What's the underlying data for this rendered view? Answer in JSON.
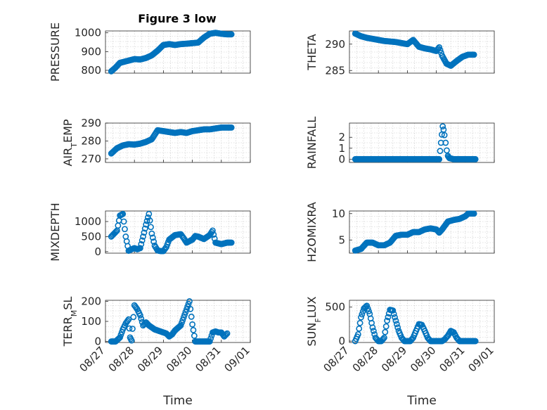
{
  "figure": {
    "title": "Figure 3 low",
    "marker_color": "#0072BD",
    "background": "#ffffff"
  },
  "chart_data": [
    {
      "type": "scatter",
      "title": "Figure 3 low",
      "xlabel": "",
      "ylabel": "PRESSURE",
      "x_tick_labels": [],
      "ylim": [
        785,
        1010
      ],
      "yticks": [
        800,
        900,
        1000
      ],
      "grid": true,
      "series": [
        {
          "points": [
            [
              0.2,
              795
            ],
            [
              0.35,
              815
            ],
            [
              0.5,
              840
            ],
            [
              0.7,
              848
            ],
            [
              0.9,
              856
            ],
            [
              1.0,
              860
            ],
            [
              1.2,
              858
            ],
            [
              1.4,
              866
            ],
            [
              1.6,
              880
            ],
            [
              1.8,
              905
            ],
            [
              2.0,
              935
            ],
            [
              2.2,
              940
            ],
            [
              2.4,
              935
            ],
            [
              2.6,
              940
            ],
            [
              2.8,
              942
            ],
            [
              3.0,
              945
            ],
            [
              3.2,
              948
            ],
            [
              3.4,
              975
            ],
            [
              3.6,
              995
            ],
            [
              3.8,
              1000
            ],
            [
              4.0,
              995
            ],
            [
              4.2,
              992
            ],
            [
              4.35,
              992
            ]
          ]
        }
      ]
    },
    {
      "type": "scatter",
      "xlabel": "",
      "ylabel": "THETA",
      "x_tick_labels": [],
      "ylim": [
        284.5,
        292.5
      ],
      "yticks": [
        285,
        290
      ],
      "grid": true,
      "series": [
        {
          "points": [
            [
              0.2,
              292
            ],
            [
              0.4,
              291.5
            ],
            [
              0.6,
              291.2
            ],
            [
              0.8,
              291.0
            ],
            [
              1.0,
              290.8
            ],
            [
              1.2,
              290.6
            ],
            [
              1.4,
              290.5
            ],
            [
              1.6,
              290.4
            ],
            [
              1.8,
              290.2
            ],
            [
              2.0,
              290.0
            ],
            [
              2.2,
              290.8
            ],
            [
              2.4,
              289.5
            ],
            [
              2.6,
              289.2
            ],
            [
              2.8,
              289.0
            ],
            [
              3.0,
              288.7
            ],
            [
              3.1,
              289.4
            ],
            [
              3.2,
              287.8
            ],
            [
              3.35,
              286.3
            ],
            [
              3.5,
              285.9
            ],
            [
              3.7,
              286.8
            ],
            [
              3.9,
              287.6
            ],
            [
              4.1,
              288.0
            ],
            [
              4.3,
              288.0
            ]
          ]
        }
      ]
    },
    {
      "type": "scatter",
      "xlabel": "",
      "ylabel": "AIR_TEMP",
      "x_tick_labels": [],
      "ylim": [
        268,
        290
      ],
      "yticks": [
        270,
        280,
        290
      ],
      "grid": true,
      "series": [
        {
          "points": [
            [
              0.2,
              273
            ],
            [
              0.4,
              276
            ],
            [
              0.6,
              277.5
            ],
            [
              0.8,
              278.2
            ],
            [
              1.0,
              278.0
            ],
            [
              1.2,
              278.5
            ],
            [
              1.4,
              279.5
            ],
            [
              1.6,
              281
            ],
            [
              1.8,
              286
            ],
            [
              2.0,
              285.5
            ],
            [
              2.2,
              285
            ],
            [
              2.4,
              284.5
            ],
            [
              2.6,
              285
            ],
            [
              2.8,
              284.5
            ],
            [
              3.0,
              285.5
            ],
            [
              3.2,
              286
            ],
            [
              3.4,
              286.5
            ],
            [
              3.6,
              286.5
            ],
            [
              3.8,
              287
            ],
            [
              4.0,
              287.5
            ],
            [
              4.2,
              287.5
            ],
            [
              4.35,
              287.5
            ]
          ]
        }
      ]
    },
    {
      "type": "scatter",
      "xlabel": "",
      "ylabel": "RAINFALL",
      "x_tick_labels": [],
      "ylim": [
        -0.3,
        3.3
      ],
      "yticks": [
        0,
        1,
        2
      ],
      "grid": true,
      "series": [
        {
          "points": [
            [
              0.2,
              0
            ],
            [
              0.5,
              0
            ],
            [
              0.8,
              0
            ],
            [
              1.1,
              0
            ],
            [
              1.4,
              0
            ],
            [
              1.7,
              0
            ],
            [
              2.0,
              0
            ],
            [
              2.3,
              0
            ],
            [
              2.6,
              0
            ],
            [
              2.9,
              0
            ],
            [
              3.1,
              0
            ],
            [
              3.22,
              3.0
            ],
            [
              3.25,
              2.7
            ],
            [
              3.28,
              2.2
            ],
            [
              3.32,
              1.5
            ],
            [
              3.36,
              0.8
            ],
            [
              3.4,
              0.3
            ],
            [
              3.45,
              0.1
            ],
            [
              3.6,
              0
            ],
            [
              3.8,
              0
            ],
            [
              4.0,
              0
            ],
            [
              4.2,
              0
            ],
            [
              4.35,
              0
            ]
          ]
        }
      ]
    },
    {
      "type": "scatter",
      "xlabel": "",
      "ylabel": "MIXDEPTH",
      "x_tick_labels": [],
      "ylim": [
        -50,
        1350
      ],
      "yticks": [
        0,
        500,
        1000
      ],
      "grid": true,
      "series": [
        {
          "points": [
            [
              0.2,
              500
            ],
            [
              0.3,
              600
            ],
            [
              0.4,
              700
            ],
            [
              0.5,
              1200
            ],
            [
              0.6,
              1250
            ],
            [
              0.7,
              500
            ],
            [
              0.8,
              30
            ],
            [
              0.9,
              80
            ],
            [
              1.0,
              120
            ],
            [
              1.1,
              80
            ],
            [
              1.2,
              120
            ],
            [
              1.3,
              500
            ],
            [
              1.4,
              900
            ],
            [
              1.5,
              1250
            ],
            [
              1.6,
              600
            ],
            [
              1.7,
              200
            ],
            [
              1.8,
              40
            ],
            [
              1.9,
              20
            ],
            [
              2.0,
              20
            ],
            [
              2.1,
              150
            ],
            [
              2.2,
              400
            ],
            [
              2.4,
              550
            ],
            [
              2.6,
              580
            ],
            [
              2.7,
              450
            ],
            [
              2.8,
              300
            ],
            [
              3.0,
              400
            ],
            [
              3.1,
              520
            ],
            [
              3.2,
              500
            ],
            [
              3.4,
              420
            ],
            [
              3.6,
              550
            ],
            [
              3.7,
              700
            ],
            [
              3.8,
              300
            ],
            [
              4.0,
              250
            ],
            [
              4.2,
              300
            ],
            [
              4.35,
              300
            ]
          ]
        }
      ]
    },
    {
      "type": "scatter",
      "xlabel": "",
      "ylabel": "H2OMIXRA",
      "x_tick_labels": [],
      "ylim": [
        2.5,
        10.5
      ],
      "yticks": [
        5,
        10
      ],
      "grid": true,
      "series": [
        {
          "points": [
            [
              0.2,
              3
            ],
            [
              0.4,
              3.3
            ],
            [
              0.6,
              4.5
            ],
            [
              0.8,
              4.5
            ],
            [
              1.0,
              4.0
            ],
            [
              1.2,
              4.0
            ],
            [
              1.4,
              4.5
            ],
            [
              1.6,
              5.8
            ],
            [
              1.8,
              6.0
            ],
            [
              2.0,
              6.0
            ],
            [
              2.2,
              6.5
            ],
            [
              2.4,
              6.5
            ],
            [
              2.6,
              7.0
            ],
            [
              2.8,
              7.2
            ],
            [
              3.0,
              7.0
            ],
            [
              3.1,
              6.4
            ],
            [
              3.2,
              7.0
            ],
            [
              3.4,
              8.5
            ],
            [
              3.6,
              8.8
            ],
            [
              3.8,
              9.0
            ],
            [
              4.0,
              9.5
            ],
            [
              4.1,
              10.0
            ],
            [
              4.3,
              10.0
            ]
          ]
        }
      ]
    },
    {
      "type": "scatter",
      "xlabel": "Time",
      "ylabel": "TERR_MSL",
      "x_tick_labels": [
        "08/27",
        "08/28",
        "08/29",
        "08/30",
        "08/31",
        "09/01"
      ],
      "xlim": [
        0,
        5
      ],
      "ylim": [
        -5,
        205
      ],
      "yticks": [
        0,
        100,
        200
      ],
      "grid": true,
      "series": [
        {
          "points": [
            [
              0.2,
              0
            ],
            [
              0.35,
              0
            ],
            [
              0.5,
              20
            ],
            [
              0.6,
              60
            ],
            [
              0.7,
              90
            ],
            [
              0.8,
              110
            ],
            [
              0.85,
              20
            ],
            [
              0.9,
              5
            ],
            [
              1.0,
              180
            ],
            [
              1.1,
              160
            ],
            [
              1.2,
              130
            ],
            [
              1.3,
              80
            ],
            [
              1.4,
              95
            ],
            [
              1.5,
              80
            ],
            [
              1.7,
              60
            ],
            [
              1.9,
              50
            ],
            [
              2.0,
              45
            ],
            [
              2.1,
              40
            ],
            [
              2.2,
              25
            ],
            [
              2.3,
              35
            ],
            [
              2.4,
              55
            ],
            [
              2.6,
              80
            ],
            [
              2.7,
              120
            ],
            [
              2.8,
              160
            ],
            [
              2.9,
              200
            ],
            [
              3.0,
              85
            ],
            [
              3.1,
              0
            ],
            [
              3.2,
              0
            ],
            [
              3.3,
              0
            ],
            [
              3.4,
              0
            ],
            [
              3.6,
              0
            ],
            [
              3.7,
              45
            ],
            [
              3.8,
              50
            ],
            [
              3.9,
              45
            ],
            [
              4.0,
              45
            ],
            [
              4.1,
              25
            ],
            [
              4.2,
              40
            ]
          ]
        }
      ]
    },
    {
      "type": "scatter",
      "xlabel": "Time",
      "ylabel": "SUN_FLUX",
      "x_tick_labels": [
        "08/27",
        "08/28",
        "08/29",
        "08/30",
        "08/31",
        "09/01"
      ],
      "xlim": [
        0,
        5
      ],
      "ylim": [
        -20,
        600
      ],
      "yticks": [
        0,
        500
      ],
      "grid": true,
      "series": [
        {
          "points": [
            [
              0.2,
              0
            ],
            [
              0.3,
              100
            ],
            [
              0.4,
              350
            ],
            [
              0.5,
              480
            ],
            [
              0.6,
              520
            ],
            [
              0.7,
              400
            ],
            [
              0.8,
              200
            ],
            [
              0.9,
              50
            ],
            [
              1.0,
              0
            ],
            [
              1.1,
              0
            ],
            [
              1.2,
              50
            ],
            [
              1.3,
              300
            ],
            [
              1.4,
              460
            ],
            [
              1.5,
              450
            ],
            [
              1.6,
              300
            ],
            [
              1.7,
              150
            ],
            [
              1.8,
              50
            ],
            [
              1.9,
              0
            ],
            [
              2.0,
              0
            ],
            [
              2.1,
              0
            ],
            [
              2.2,
              50
            ],
            [
              2.3,
              150
            ],
            [
              2.4,
              250
            ],
            [
              2.5,
              240
            ],
            [
              2.6,
              150
            ],
            [
              2.7,
              50
            ],
            [
              2.8,
              0
            ],
            [
              3.0,
              0
            ],
            [
              3.2,
              0
            ],
            [
              3.3,
              30
            ],
            [
              3.4,
              80
            ],
            [
              3.5,
              150
            ],
            [
              3.6,
              130
            ],
            [
              3.7,
              50
            ],
            [
              3.8,
              0
            ],
            [
              4.0,
              0
            ],
            [
              4.2,
              0
            ],
            [
              4.35,
              0
            ]
          ]
        }
      ]
    }
  ]
}
